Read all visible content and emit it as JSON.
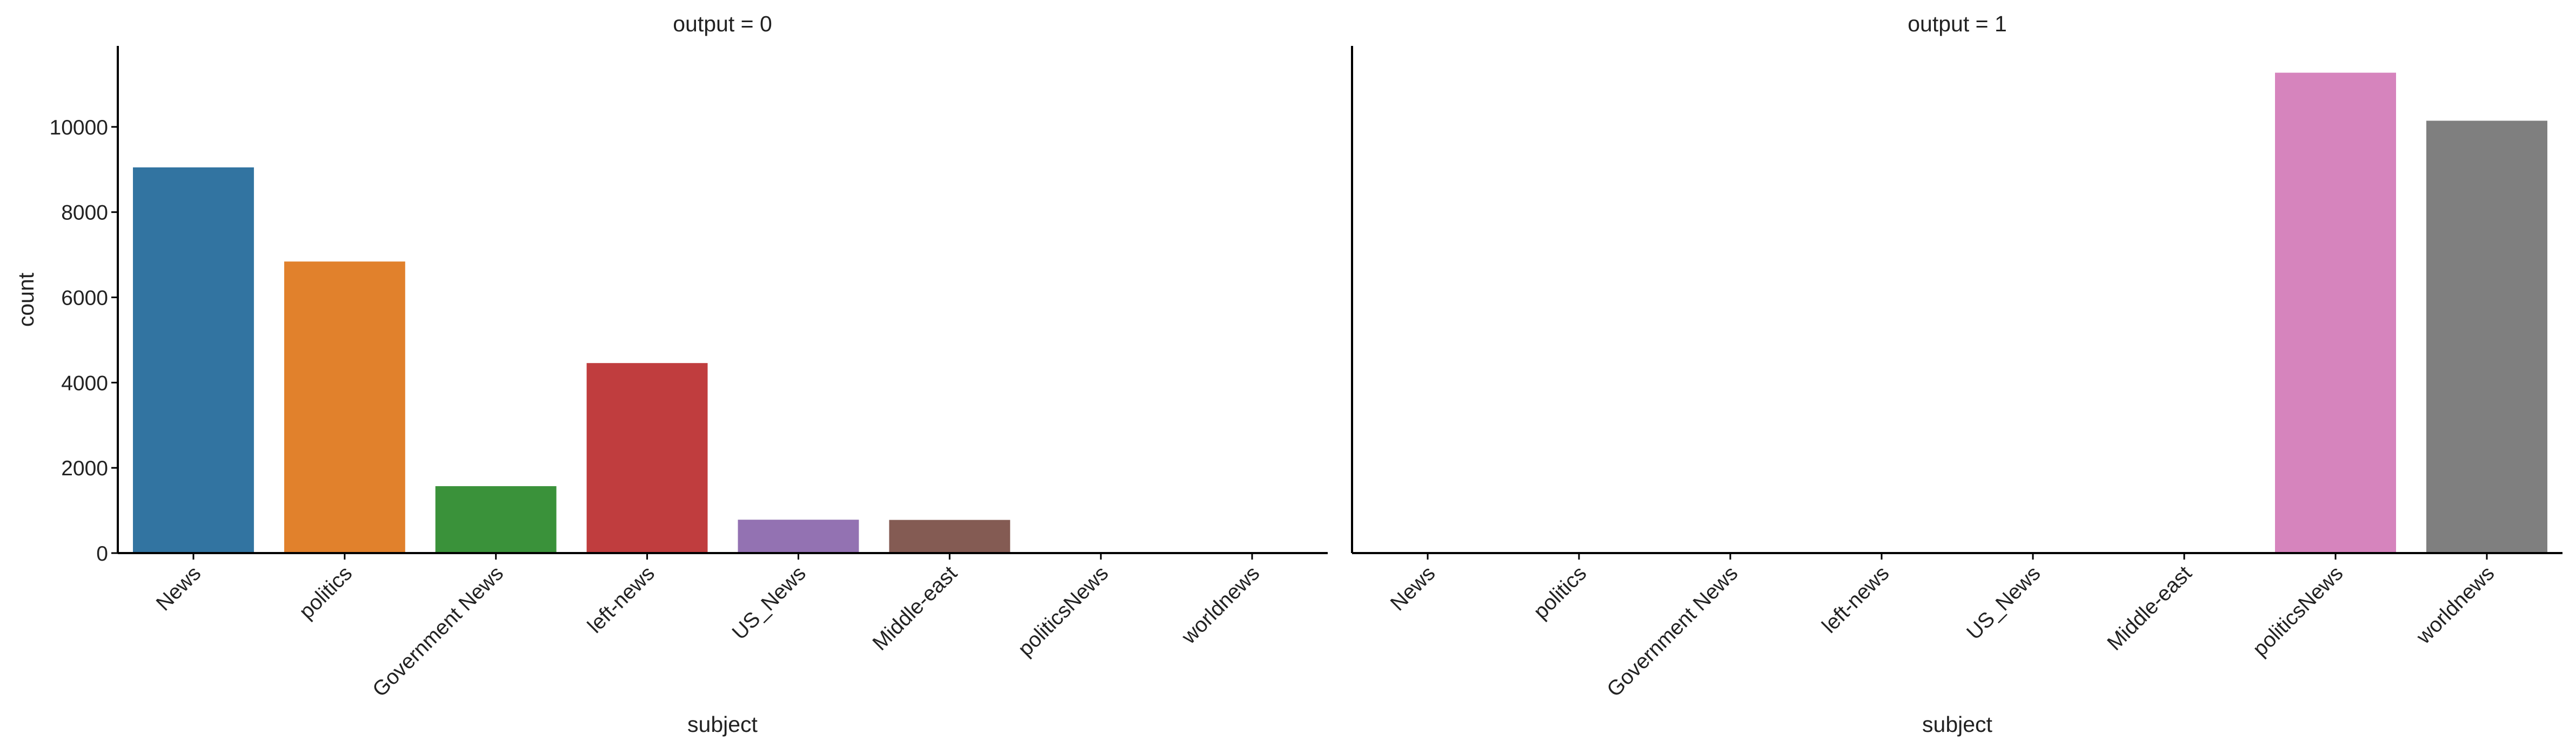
{
  "chart_data": {
    "type": "bar",
    "facet_variable": "output",
    "xlabel": "subject",
    "ylabel": "count",
    "ylim": [
      0,
      11900
    ],
    "yticks": [
      0,
      2000,
      4000,
      6000,
      8000,
      10000
    ],
    "grid": false,
    "categories": [
      "News",
      "politics",
      "Government News",
      "left-news",
      "US_News",
      "Middle-east",
      "politicsNews",
      "worldnews"
    ],
    "colors": [
      "#3274a1",
      "#e1812c",
      "#3a923a",
      "#c03d3e",
      "#9372b2",
      "#845b53",
      "#d684bd",
      "#7f7f7f"
    ],
    "panels": [
      {
        "title": "output = 0",
        "values": [
          9050,
          6841,
          1570,
          4459,
          783,
          778,
          0,
          0
        ]
      },
      {
        "title": "output = 1",
        "values": [
          0,
          0,
          0,
          0,
          0,
          0,
          11272,
          10145
        ]
      }
    ]
  }
}
